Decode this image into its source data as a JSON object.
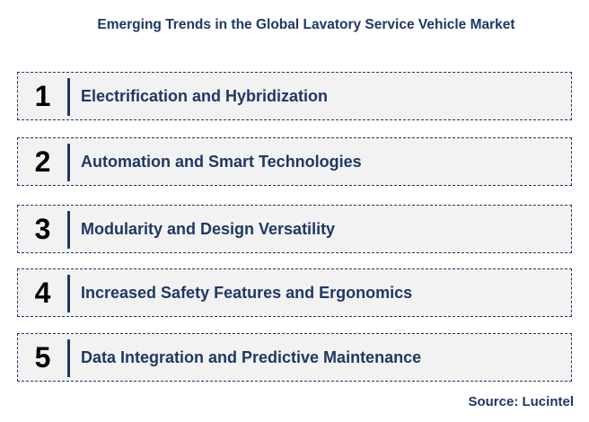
{
  "title": "Emerging Trends in the Global Lavatory Service Vehicle Market",
  "trends": [
    {
      "number": "1",
      "label": "Electrification and Hybridization"
    },
    {
      "number": "2",
      "label": "Automation and Smart Technologies"
    },
    {
      "number": "3",
      "label": "Modularity and Design Versatility"
    },
    {
      "number": "4",
      "label": "Increased Safety Features and Ergonomics"
    },
    {
      "number": "5",
      "label": "Data Integration and Predictive Maintenance"
    }
  ],
  "source": "Source: Lucintel",
  "colors": {
    "text_navy": "#1f3864",
    "box_fill": "#f2f2f2",
    "number": "#000000"
  }
}
